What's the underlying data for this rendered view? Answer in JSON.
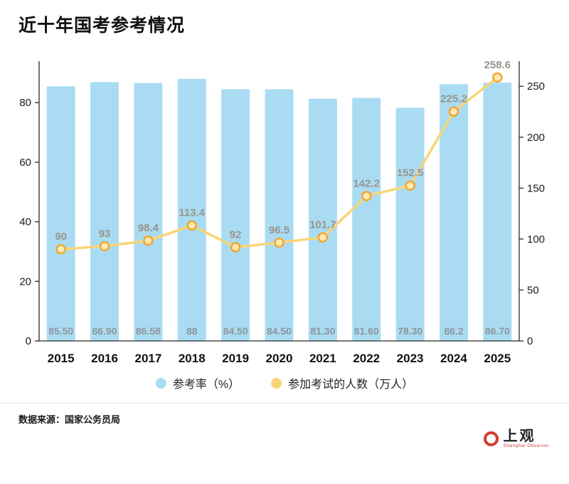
{
  "title": "近十年国考参考情况",
  "chart_data": {
    "type": "bar+line combo",
    "title": "近十年国考参考情况",
    "categories": [
      "2015",
      "2016",
      "2017",
      "2018",
      "2019",
      "2020",
      "2021",
      "2022",
      "2023",
      "2024",
      "2025"
    ],
    "series": [
      {
        "name": "参考率（%）",
        "type": "bar",
        "axis": "left",
        "values": [
          85.5,
          86.9,
          86.58,
          88,
          84.5,
          84.5,
          81.3,
          81.6,
          78.3,
          86.2,
          86.7
        ],
        "labels": [
          "85.50",
          "86.90",
          "86.58",
          "88",
          "84.50",
          "84.50",
          "81.30",
          "81.60",
          "78.30",
          "86.2",
          "86.70"
        ],
        "color": "#a9dcf2"
      },
      {
        "name": "参加考试的人数（万人）",
        "type": "line",
        "axis": "right",
        "values": [
          90,
          93,
          98.4,
          113.4,
          92,
          96.5,
          101.7,
          142.2,
          152.5,
          225.2,
          258.6
        ],
        "labels": [
          "90",
          "93",
          "98.4",
          "113.4",
          "92",
          "96.5",
          "101.7",
          "142.2",
          "152.5",
          "225.2",
          "258.6"
        ],
        "color": "#f8d578",
        "marker_fill": "#ffe9b4",
        "marker_stroke": "#f0a830"
      }
    ],
    "left_axis": {
      "ticks": [
        0,
        20,
        40,
        60,
        80
      ],
      "ylim": [
        0,
        92
      ]
    },
    "right_axis": {
      "ticks": [
        0,
        50,
        100,
        150,
        200,
        250
      ],
      "ylim": [
        0,
        269
      ]
    },
    "grid": false,
    "legend_position": "bottom"
  },
  "legend": [
    {
      "label": "参考率（%）",
      "color": "#a9dcf2"
    },
    {
      "label": "参加考试的人数（万人）",
      "color": "#f8d578"
    }
  ],
  "footer": {
    "source": "数据来源：国家公务员局"
  },
  "logo": {
    "name": "上观",
    "subtitle": "Shanghai Observer",
    "color": "#cf3b2d"
  }
}
